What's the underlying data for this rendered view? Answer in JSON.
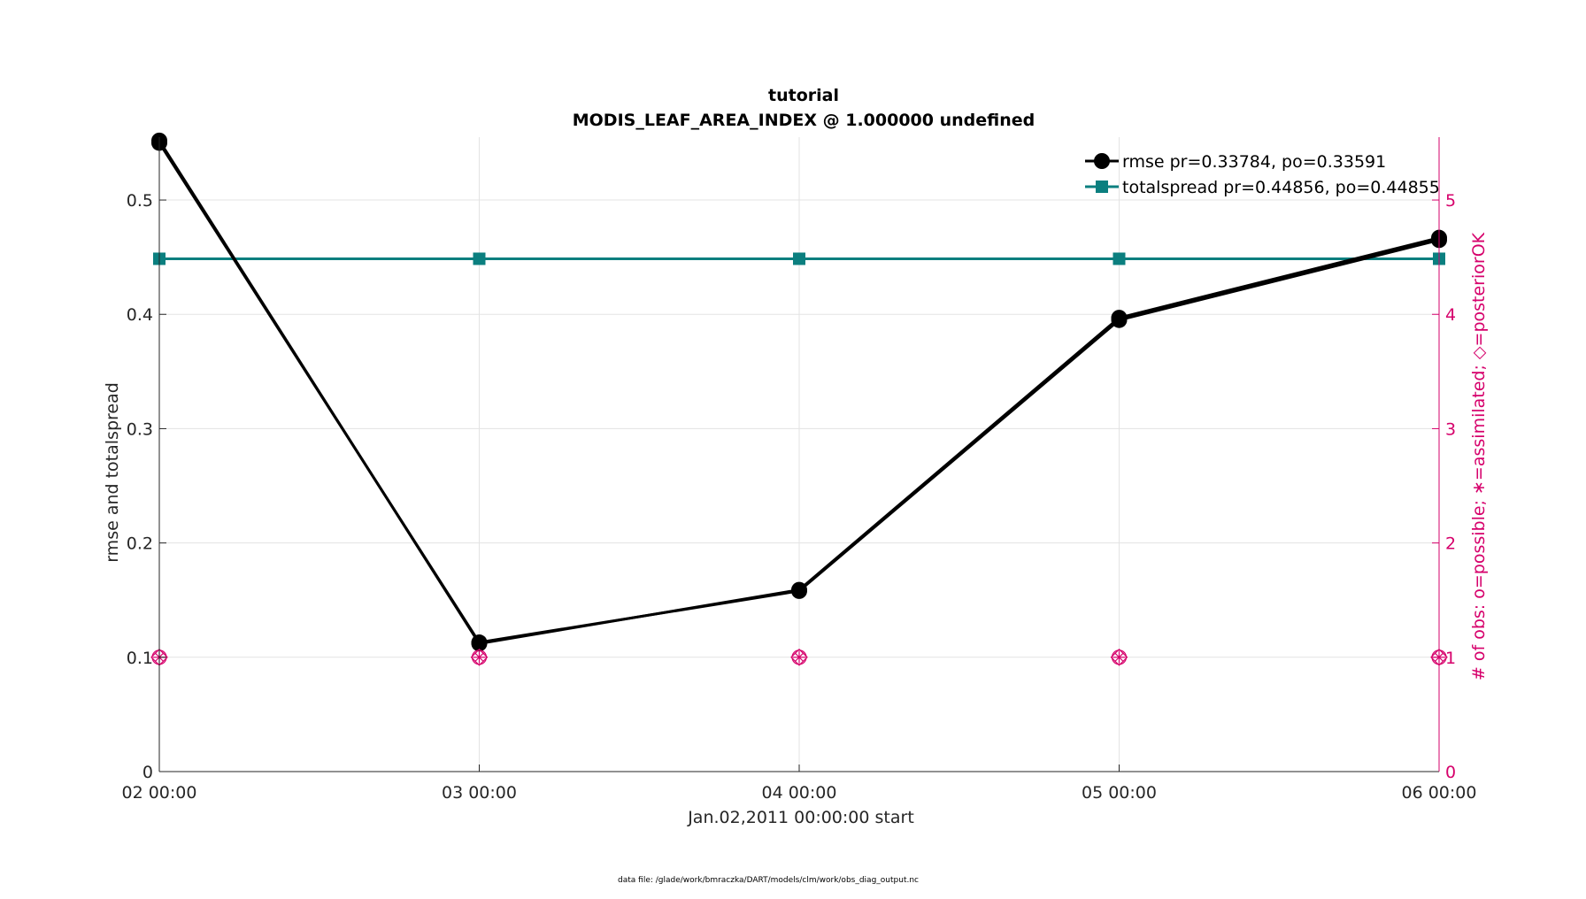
{
  "chart_data": {
    "type": "line",
    "title": "tutorial",
    "subtitle": "MODIS_LEAF_AREA_INDEX @ 1.000000 undefined",
    "xlabel": "Jan.02,2011 00:00:00 start",
    "ylabel": "rmse and totalspread",
    "y2label": "# of obs: o=possible; ∗=assimilated; ◇=posteriorOK",
    "categories": [
      "02 00:00",
      "03 00:00",
      "04 00:00",
      "05 00:00",
      "06 00:00"
    ],
    "x": [
      0,
      1,
      2,
      3,
      4
    ],
    "xlim": [
      0,
      4
    ],
    "ylim": [
      0,
      0.555
    ],
    "yticks": [
      "0",
      "0.1",
      "0.2",
      "0.3",
      "0.4",
      "0.5"
    ],
    "y2lim": [
      0,
      5.55
    ],
    "y2ticks": [
      "0",
      "1",
      "2",
      "3",
      "4",
      "5"
    ],
    "grid": true,
    "legend_position": "top-right",
    "series": [
      {
        "name": "rmse pr=0.33784, po=0.33591",
        "marker": "circle",
        "color": "#000000",
        "axis": "left",
        "values_prior": [
          0.552,
          0.112,
          0.159,
          0.397,
          0.467
        ],
        "values_posterior": [
          0.55,
          0.113,
          0.158,
          0.395,
          0.465
        ]
      },
      {
        "name": "totalspread pr=0.44856, po=0.44855",
        "marker": "square",
        "color": "#0b7f7f",
        "axis": "left",
        "values": [
          0.4486,
          0.4486,
          0.4486,
          0.4486,
          0.4486
        ]
      },
      {
        "marker": "o * diamond",
        "color": "#d6006b",
        "axis": "right",
        "possible": [
          1,
          1,
          1,
          1,
          1
        ],
        "assimilated": [
          1,
          1,
          1,
          1,
          1
        ],
        "posteriorOK": [
          1,
          1,
          1,
          1,
          1
        ]
      }
    ],
    "footer": "data file: /glade/work/bmraczka/DART/models/clm/work/obs_diag_output.nc"
  }
}
